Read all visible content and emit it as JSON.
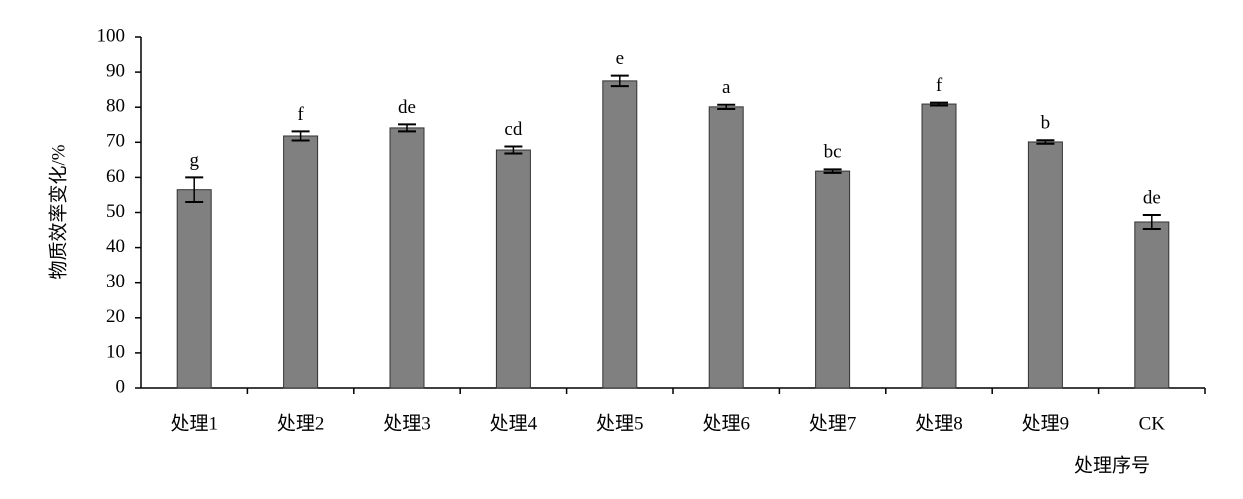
{
  "chart_data": {
    "type": "bar",
    "x_label": "处理序号",
    "y_label": "物质效率变化/%",
    "categories": [
      "处理1",
      "处理2",
      "处理3",
      "处理4",
      "处理5",
      "处理6",
      "处理7",
      "处理8",
      "处理9",
      "CK"
    ],
    "values": [
      56.5,
      71.8,
      74.1,
      67.8,
      87.5,
      80.1,
      61.8,
      80.9,
      70.1,
      47.3
    ],
    "errors": [
      3.5,
      1.3,
      1.0,
      1.0,
      1.5,
      0.6,
      0.5,
      0.4,
      0.5,
      2.0
    ],
    "annotations": [
      "g",
      "f",
      "de",
      "cd",
      "e",
      "a",
      "bc",
      "f",
      "b",
      "de"
    ],
    "color": "#808080",
    "ylim": [
      0,
      100
    ],
    "yticks": [
      0,
      10,
      20,
      30,
      40,
      50,
      60,
      70,
      80,
      90,
      100
    ],
    "grid": false
  }
}
